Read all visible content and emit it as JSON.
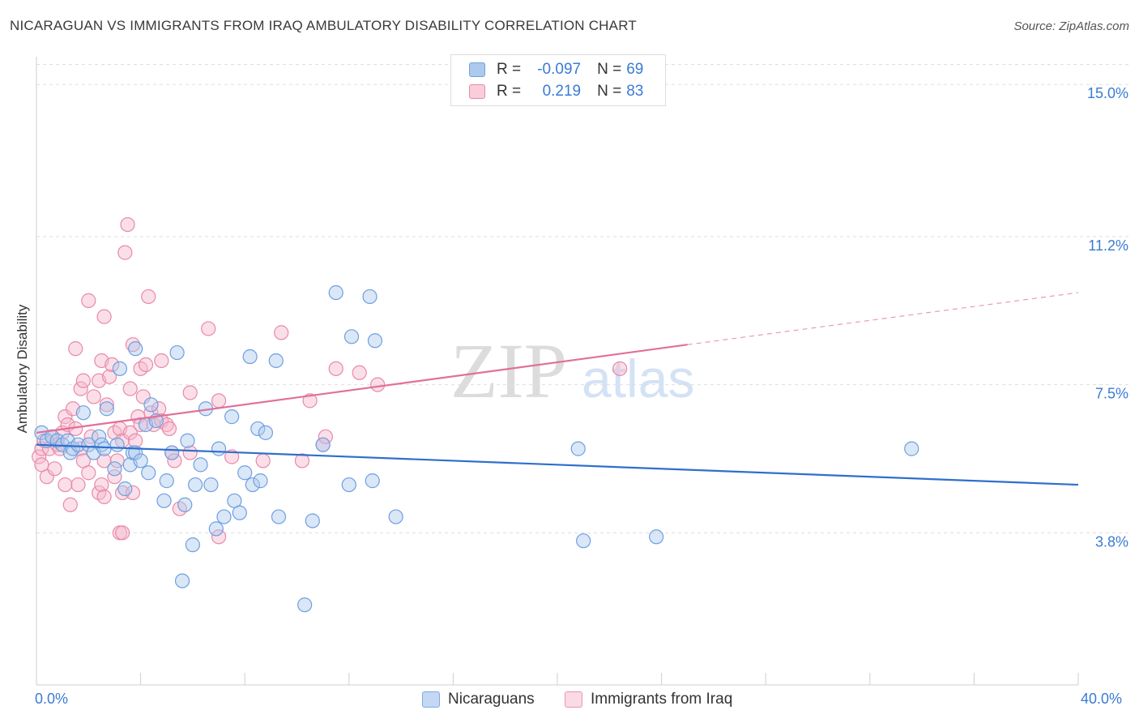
{
  "header": {
    "title": "NICARAGUAN VS IMMIGRANTS FROM IRAQ AMBULATORY DISABILITY CORRELATION CHART",
    "source": "Source: ZipAtlas.com"
  },
  "legend": {
    "series1": {
      "r_label": "R =",
      "r_value": "-0.097",
      "n_label": "N =",
      "n_value": "69"
    },
    "series2": {
      "r_label": "R =",
      "r_value": "0.219",
      "n_label": "N =",
      "n_value": "83"
    }
  },
  "colors": {
    "blue": "#3a7bd5",
    "blue_fill": "#aec9ee",
    "blue_line": "#2f6fcc",
    "pink_fill": "#f6b8cb",
    "pink_stroke": "#e889a8",
    "pink_line": "#e0709a"
  },
  "watermark": {
    "part1": "ZIP",
    "part2": "atlas"
  },
  "chart_data": {
    "type": "scatter",
    "title": "NICARAGUAN VS IMMIGRANTS FROM IRAQ AMBULATORY DISABILITY CORRELATION CHART",
    "xlabel": "",
    "ylabel": "Ambulatory Disability",
    "xlim": [
      0,
      40
    ],
    "ylim": [
      0,
      15.5
    ],
    "x_tick_labels": [
      "0.0%",
      "40.0%"
    ],
    "y_ticks": [
      3.8,
      7.5,
      11.2,
      15.0
    ],
    "y_tick_labels": [
      "3.8%",
      "7.5%",
      "11.2%",
      "15.0%"
    ],
    "grid": true,
    "legend_position": "top-center",
    "series": [
      {
        "name": "Nicaraguans",
        "color": "#3a7bd5",
        "r": -0.097,
        "n": 69,
        "trend": {
          "x": [
            0,
            40
          ],
          "y": [
            6.0,
            5.0
          ]
        },
        "points": [
          [
            0.2,
            6.3
          ],
          [
            0.4,
            6.1
          ],
          [
            0.6,
            6.2
          ],
          [
            0.8,
            6.1
          ],
          [
            1.0,
            6.0
          ],
          [
            1.2,
            6.1
          ],
          [
            1.3,
            5.8
          ],
          [
            1.4,
            5.9
          ],
          [
            1.6,
            6.0
          ],
          [
            1.8,
            6.8
          ],
          [
            2.0,
            6.0
          ],
          [
            2.2,
            5.8
          ],
          [
            2.4,
            6.2
          ],
          [
            2.5,
            6.0
          ],
          [
            2.6,
            5.9
          ],
          [
            2.7,
            6.9
          ],
          [
            3.0,
            5.4
          ],
          [
            3.1,
            6.0
          ],
          [
            3.2,
            7.9
          ],
          [
            3.4,
            4.9
          ],
          [
            3.6,
            5.5
          ],
          [
            3.7,
            5.8
          ],
          [
            3.8,
            5.8
          ],
          [
            3.8,
            8.4
          ],
          [
            4.0,
            5.6
          ],
          [
            4.2,
            6.5
          ],
          [
            4.3,
            5.3
          ],
          [
            4.4,
            7.0
          ],
          [
            4.6,
            6.6
          ],
          [
            4.9,
            4.6
          ],
          [
            5.0,
            5.1
          ],
          [
            5.2,
            5.8
          ],
          [
            5.4,
            8.3
          ],
          [
            5.6,
            2.6
          ],
          [
            5.7,
            4.5
          ],
          [
            5.8,
            6.1
          ],
          [
            6.0,
            3.5
          ],
          [
            6.1,
            5.0
          ],
          [
            6.3,
            5.5
          ],
          [
            6.5,
            6.9
          ],
          [
            6.7,
            5.0
          ],
          [
            6.9,
            3.9
          ],
          [
            7.0,
            5.9
          ],
          [
            7.2,
            4.2
          ],
          [
            7.5,
            6.7
          ],
          [
            7.6,
            4.6
          ],
          [
            7.8,
            4.3
          ],
          [
            8.0,
            5.3
          ],
          [
            8.2,
            8.2
          ],
          [
            8.3,
            5.0
          ],
          [
            8.5,
            6.4
          ],
          [
            8.6,
            5.1
          ],
          [
            8.8,
            6.3
          ],
          [
            9.2,
            8.1
          ],
          [
            9.3,
            4.2
          ],
          [
            10.3,
            2.0
          ],
          [
            10.6,
            4.1
          ],
          [
            11.0,
            6.0
          ],
          [
            11.5,
            9.8
          ],
          [
            12.0,
            5.0
          ],
          [
            12.1,
            8.7
          ],
          [
            12.8,
            9.7
          ],
          [
            12.9,
            5.1
          ],
          [
            13.0,
            8.6
          ],
          [
            13.8,
            4.2
          ],
          [
            20.8,
            5.9
          ],
          [
            21.0,
            3.6
          ],
          [
            23.8,
            3.7
          ],
          [
            33.6,
            5.9
          ]
        ]
      },
      {
        "name": "Immigrants from Iraq",
        "color": "#e889a8",
        "r": 0.219,
        "n": 83,
        "trend": {
          "x": [
            0,
            25,
            40
          ],
          "y": [
            6.3,
            8.5,
            9.8
          ],
          "solid_until": 25
        },
        "points": [
          [
            0.1,
            5.7
          ],
          [
            0.2,
            5.9
          ],
          [
            0.2,
            5.5
          ],
          [
            0.3,
            6.1
          ],
          [
            0.4,
            5.2
          ],
          [
            0.5,
            5.9
          ],
          [
            0.6,
            6.2
          ],
          [
            0.7,
            5.4
          ],
          [
            0.8,
            6.0
          ],
          [
            0.9,
            5.9
          ],
          [
            1.0,
            6.3
          ],
          [
            1.1,
            5.0
          ],
          [
            1.1,
            6.7
          ],
          [
            1.2,
            6.5
          ],
          [
            1.3,
            4.5
          ],
          [
            1.4,
            6.9
          ],
          [
            1.5,
            6.4
          ],
          [
            1.5,
            8.4
          ],
          [
            1.6,
            5.0
          ],
          [
            1.7,
            5.9
          ],
          [
            1.7,
            7.4
          ],
          [
            1.8,
            5.6
          ],
          [
            1.8,
            7.6
          ],
          [
            2.0,
            9.6
          ],
          [
            2.0,
            5.3
          ],
          [
            2.1,
            6.2
          ],
          [
            2.2,
            7.2
          ],
          [
            2.4,
            7.6
          ],
          [
            2.4,
            4.8
          ],
          [
            2.5,
            5.0
          ],
          [
            2.5,
            8.1
          ],
          [
            2.6,
            4.7
          ],
          [
            2.6,
            5.6
          ],
          [
            2.6,
            9.2
          ],
          [
            2.7,
            7.0
          ],
          [
            2.8,
            7.7
          ],
          [
            2.9,
            8.0
          ],
          [
            3.0,
            5.2
          ],
          [
            3.0,
            6.3
          ],
          [
            3.1,
            5.6
          ],
          [
            3.2,
            3.8
          ],
          [
            3.2,
            6.4
          ],
          [
            3.3,
            3.8
          ],
          [
            3.3,
            4.8
          ],
          [
            3.3,
            6.1
          ],
          [
            3.4,
            10.8
          ],
          [
            3.5,
            11.5
          ],
          [
            3.6,
            6.3
          ],
          [
            3.6,
            7.4
          ],
          [
            3.7,
            8.5
          ],
          [
            3.7,
            4.8
          ],
          [
            3.8,
            6.1
          ],
          [
            3.9,
            6.7
          ],
          [
            4.0,
            6.5
          ],
          [
            4.0,
            7.9
          ],
          [
            4.1,
            7.2
          ],
          [
            4.2,
            8.0
          ],
          [
            4.3,
            9.7
          ],
          [
            4.4,
            6.8
          ],
          [
            4.5,
            6.5
          ],
          [
            4.7,
            6.9
          ],
          [
            4.8,
            6.6
          ],
          [
            4.8,
            8.1
          ],
          [
            5.0,
            6.5
          ],
          [
            5.1,
            6.4
          ],
          [
            5.2,
            5.8
          ],
          [
            5.3,
            5.6
          ],
          [
            5.5,
            4.4
          ],
          [
            5.9,
            5.8
          ],
          [
            5.9,
            7.3
          ],
          [
            6.6,
            8.9
          ],
          [
            7.0,
            7.1
          ],
          [
            7.0,
            3.7
          ],
          [
            7.5,
            5.7
          ],
          [
            8.7,
            5.6
          ],
          [
            9.4,
            8.8
          ],
          [
            10.2,
            5.6
          ],
          [
            10.5,
            7.1
          ],
          [
            11.0,
            6.0
          ],
          [
            11.1,
            6.2
          ],
          [
            11.5,
            7.9
          ],
          [
            12.4,
            7.8
          ],
          [
            13.1,
            7.5
          ],
          [
            22.4,
            7.9
          ]
        ]
      }
    ]
  },
  "bottom_legend": {
    "item1": "Nicaraguans",
    "item2": "Immigrants from Iraq"
  }
}
